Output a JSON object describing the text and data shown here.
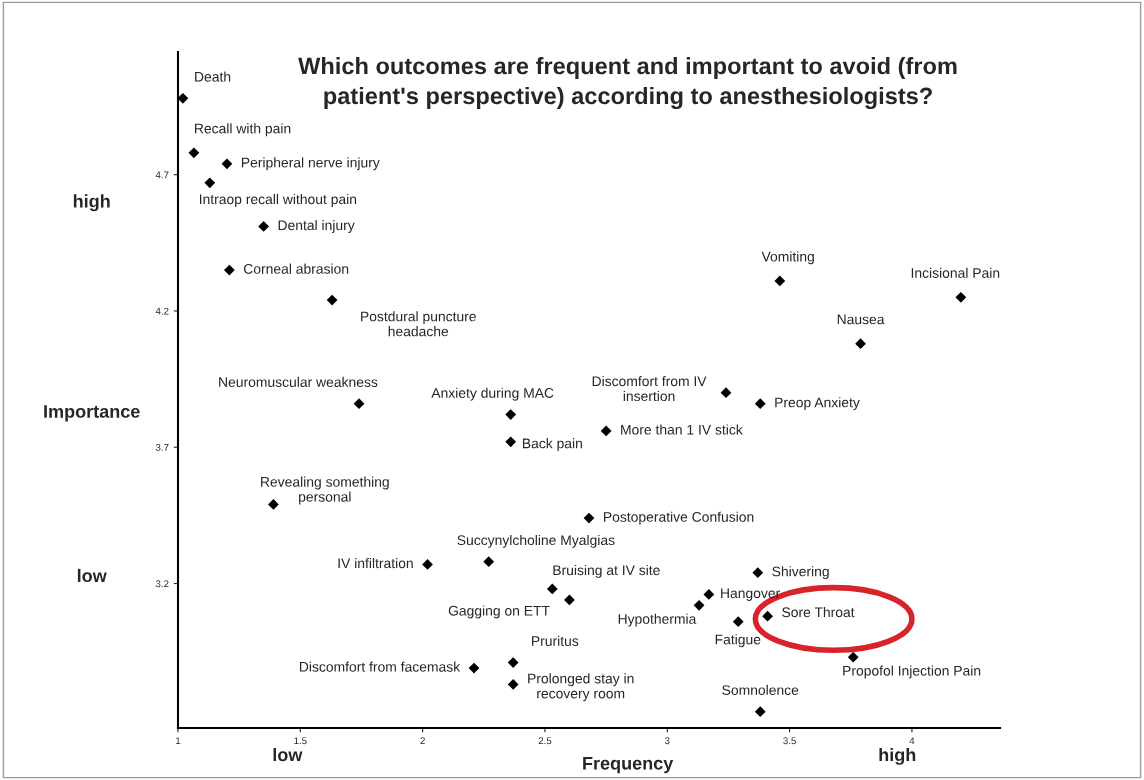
{
  "chart_data": {
    "type": "scatter",
    "title": "Which outcomes are frequent and important to avoid (from\npatient's perspective) according to anesthesiologists?",
    "xlabel": "Frequency",
    "ylabel": "Importance",
    "annotations": [
      "high",
      "low",
      "low",
      "high"
    ],
    "x": [
      1.02,
      1.065,
      1.2,
      1.13,
      1.35,
      1.21,
      1.63,
      3.46,
      4.2,
      3.79,
      3.24,
      3.38,
      1.74,
      2.36,
      2.36,
      2.75,
      1.39,
      2.68,
      2.27,
      2.02,
      2.53,
      2.6,
      3.37,
      3.17,
      3.13,
      3.41,
      3.29,
      3.76,
      2.37,
      2.21,
      2.37,
      3.38
    ],
    "values": [
      4.98,
      4.78,
      4.74,
      4.67,
      4.51,
      4.35,
      4.24,
      4.31,
      4.25,
      4.08,
      3.9,
      3.86,
      3.86,
      3.82,
      3.72,
      3.76,
      3.49,
      3.44,
      3.28,
      3.27,
      3.18,
      3.14,
      3.24,
      3.16,
      3.12,
      3.08,
      3.06,
      2.93,
      2.91,
      2.89,
      2.83,
      2.73
    ],
    "value_labels": [
      "Death",
      "Recall with pain",
      "Peripheral nerve injury",
      "Intraop recall without pain",
      "Dental injury",
      "Corneal abrasion",
      "Postdural puncture\nheadache",
      "Vomiting",
      "Incisional Pain",
      "Nausea",
      "Discomfort from IV\ninsertion",
      "Preop Anxiety",
      "Neuromuscular weakness",
      "Anxiety during MAC",
      "Back pain",
      "More than 1 IV stick",
      "Revealing something\npersonal",
      "Postoperative Confusion",
      "Succynylcholine Myalgias",
      "IV infiltration",
      "Bruising at IV site",
      "Gagging on ETT",
      "Shivering",
      "Hangover",
      "Hypothermia",
      "Sore Throat",
      "Fatigue",
      "Propofol Injection Pain",
      "Pruritus",
      "Discomfort from facemask",
      "Prolonged stay in\nrecovery room",
      "Somnolence"
    ],
    "color": "#000000",
    "marker": "diamond",
    "xlim": [
      1,
      4.36
    ],
    "ylim": [
      2.67,
      5.15
    ],
    "xticks": [
      1,
      1.5,
      2,
      2.5,
      3,
      3.5,
      4
    ],
    "yticks": [
      3.2,
      3.7,
      4.2,
      4.7
    ],
    "grid": false,
    "legend": false
  }
}
